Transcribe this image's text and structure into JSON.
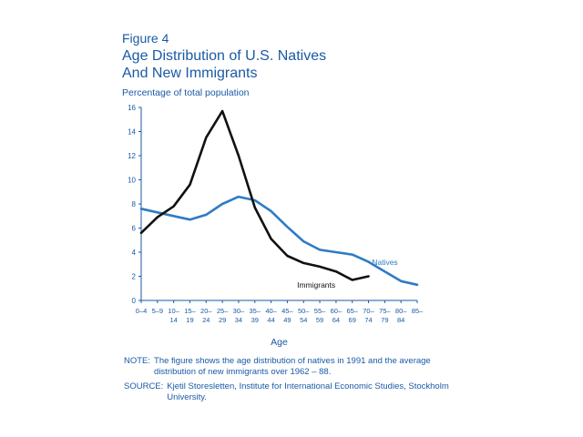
{
  "figure": {
    "label": "Figure 4",
    "title_line1": "Age Distribution of U.S. Natives",
    "title_line2": "And New Immigrants"
  },
  "notes": {
    "note_head": "NOTE:",
    "note_text": "The figure shows the age distribution of natives in 1991 and the average distribution of new immigrants over 1962 – 88.",
    "source_head": "SOURCE:",
    "source_text": "Kjetil Storesletten, Institute for International Economic Studies, Stockholm University."
  },
  "colors": {
    "natives": "#2e7bc4",
    "immigrants": "#111111",
    "axis": "#1a5aa6"
  },
  "chart_data": {
    "type": "line",
    "ylabel": "Percentage of total population",
    "xlabel": "Age",
    "ylim": [
      0,
      16
    ],
    "yticks": [
      0,
      2,
      4,
      6,
      8,
      10,
      12,
      14,
      16
    ],
    "grid": false,
    "categories": [
      [
        "0–4",
        ""
      ],
      [
        "5–9",
        ""
      ],
      [
        "10–",
        "14"
      ],
      [
        "15–",
        "19"
      ],
      [
        "20–",
        "24"
      ],
      [
        "25–",
        "29"
      ],
      [
        "30–",
        "34"
      ],
      [
        "35–",
        "39"
      ],
      [
        "40–",
        "44"
      ],
      [
        "45–",
        "49"
      ],
      [
        "50–",
        "54"
      ],
      [
        "55–",
        "59"
      ],
      [
        "60–",
        "64"
      ],
      [
        "65–",
        "69"
      ],
      [
        "70–",
        "74"
      ],
      [
        "75–",
        "79"
      ],
      [
        "80–",
        "84"
      ],
      [
        "85–",
        ""
      ]
    ],
    "series": [
      {
        "name": "Natives",
        "color": "#2e7bc4",
        "values": [
          7.6,
          7.3,
          7.0,
          6.7,
          7.1,
          8.0,
          8.6,
          8.3,
          7.4,
          6.1,
          4.9,
          4.2,
          4.0,
          3.8,
          3.2,
          2.4,
          1.6,
          1.3
        ]
      },
      {
        "name": "Immigrants",
        "color": "#111111",
        "values": [
          5.6,
          6.9,
          7.8,
          9.6,
          13.5,
          15.7,
          12.0,
          7.7,
          5.1,
          3.7,
          3.1,
          2.8,
          2.4,
          1.7,
          2.0,
          null,
          null,
          null
        ]
      }
    ]
  }
}
